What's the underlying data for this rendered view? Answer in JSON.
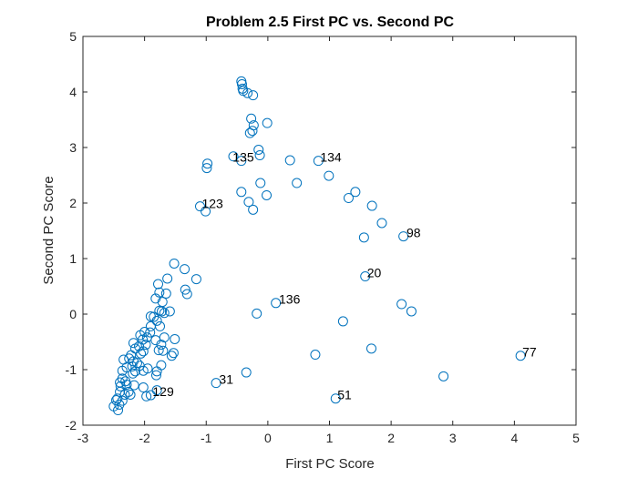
{
  "chart_data": {
    "type": "scatter",
    "title": "Problem 2.5 First PC vs. Second PC",
    "xlabel": "First PC Score",
    "ylabel": "Second PC Score",
    "xlim": [
      -3,
      5
    ],
    "ylim": [
      -2,
      5
    ],
    "xticks": [
      -3,
      -2,
      -1,
      0,
      1,
      2,
      3,
      4,
      5
    ],
    "yticks": [
      -2,
      -1,
      0,
      1,
      2,
      3,
      4,
      5
    ],
    "grid": false,
    "marker": "circle",
    "color": "#0072BD",
    "points": [
      [
        -0.43,
        4.19
      ],
      [
        -0.42,
        4.14
      ],
      [
        -0.41,
        4.06
      ],
      [
        -0.4,
        4.02
      ],
      [
        -0.33,
        3.98
      ],
      [
        -0.24,
        3.94
      ],
      [
        -0.27,
        3.52
      ],
      [
        -0.23,
        3.4
      ],
      [
        -0.01,
        3.44
      ],
      [
        -0.29,
        3.26
      ],
      [
        -0.25,
        3.3
      ],
      [
        -0.15,
        2.96
      ],
      [
        -0.56,
        2.84
      ],
      [
        -0.43,
        2.76
      ],
      [
        -0.13,
        2.86
      ],
      [
        -0.98,
        2.71
      ],
      [
        -0.99,
        2.63
      ],
      [
        0.36,
        2.77
      ],
      [
        0.82,
        2.76
      ],
      [
        0.99,
        2.49
      ],
      [
        0.47,
        2.36
      ],
      [
        -0.12,
        2.36
      ],
      [
        1.42,
        2.2
      ],
      [
        1.31,
        2.09
      ],
      [
        1.69,
        1.95
      ],
      [
        1.85,
        1.64
      ],
      [
        2.2,
        1.4
      ],
      [
        1.56,
        1.38
      ],
      [
        -0.43,
        2.2
      ],
      [
        -0.31,
        2.02
      ],
      [
        -0.24,
        1.88
      ],
      [
        -0.02,
        2.14
      ],
      [
        -1.1,
        1.94
      ],
      [
        -1.01,
        1.85
      ],
      [
        1.58,
        0.68
      ],
      [
        0.13,
        0.2
      ],
      [
        2.17,
        0.18
      ],
      [
        2.33,
        0.05
      ],
      [
        -0.18,
        0.01
      ],
      [
        1.22,
        -0.13
      ],
      [
        0.77,
        -0.73
      ],
      [
        1.68,
        -0.62
      ],
      [
        2.85,
        -1.12
      ],
      [
        4.1,
        -0.75
      ],
      [
        -0.84,
        -1.24
      ],
      [
        -0.35,
        -1.05
      ],
      [
        1.1,
        -1.52
      ],
      [
        -1.52,
        0.91
      ],
      [
        -1.35,
        0.81
      ],
      [
        -1.63,
        0.64
      ],
      [
        -1.16,
        0.63
      ],
      [
        -1.78,
        0.54
      ],
      [
        -1.34,
        0.44
      ],
      [
        -1.31,
        0.36
      ],
      [
        -1.65,
        0.37
      ],
      [
        -1.76,
        0.39
      ],
      [
        -1.82,
        0.28
      ],
      [
        -1.71,
        0.22
      ],
      [
        -1.72,
        0.05
      ],
      [
        -1.59,
        0.05
      ],
      [
        -1.76,
        0.06
      ],
      [
        -1.68,
        0.02
      ],
      [
        -1.85,
        -0.05
      ],
      [
        -1.9,
        -0.04
      ],
      [
        -1.8,
        -0.12
      ],
      [
        -1.9,
        -0.22
      ],
      [
        -1.75,
        -0.22
      ],
      [
        -1.91,
        -0.33
      ],
      [
        -1.68,
        -0.42
      ],
      [
        -1.51,
        -0.45
      ],
      [
        -2.0,
        -0.32
      ],
      [
        -2.07,
        -0.38
      ],
      [
        -1.96,
        -0.42
      ],
      [
        -1.82,
        -0.47
      ],
      [
        -1.73,
        -0.55
      ],
      [
        -2.03,
        -0.46
      ],
      [
        -2.18,
        -0.52
      ],
      [
        -1.98,
        -0.55
      ],
      [
        -2.09,
        -0.58
      ],
      [
        -2.15,
        -0.62
      ],
      [
        -1.7,
        -0.66
      ],
      [
        -1.77,
        -0.65
      ],
      [
        -1.53,
        -0.7
      ],
      [
        -1.56,
        -0.75
      ],
      [
        -2.02,
        -0.67
      ],
      [
        -2.06,
        -0.71
      ],
      [
        -2.22,
        -0.74
      ],
      [
        -2.34,
        -0.82
      ],
      [
        -2.25,
        -0.8
      ],
      [
        -2.18,
        -0.85
      ],
      [
        -2.12,
        -0.88
      ],
      [
        -2.08,
        -0.93
      ],
      [
        -2.2,
        -0.94
      ],
      [
        -1.73,
        -0.92
      ],
      [
        -1.95,
        -0.98
      ],
      [
        -2.02,
        -1.02
      ],
      [
        -2.15,
        -1.03
      ],
      [
        -2.29,
        -0.96
      ],
      [
        -2.36,
        -1.02
      ],
      [
        -1.8,
        -1.03
      ],
      [
        -1.81,
        -1.1
      ],
      [
        -2.19,
        -1.07
      ],
      [
        -2.36,
        -1.16
      ],
      [
        -2.31,
        -1.21
      ],
      [
        -2.4,
        -1.23
      ],
      [
        -2.39,
        -1.3
      ],
      [
        -2.29,
        -1.27
      ],
      [
        -2.17,
        -1.28
      ],
      [
        -2.02,
        -1.32
      ],
      [
        -1.8,
        -1.37
      ],
      [
        -2.26,
        -1.4
      ],
      [
        -2.4,
        -1.4
      ],
      [
        -2.32,
        -1.45
      ],
      [
        -2.23,
        -1.45
      ],
      [
        -1.9,
        -1.46
      ],
      [
        -1.97,
        -1.48
      ],
      [
        -2.44,
        -1.52
      ],
      [
        -2.36,
        -1.56
      ],
      [
        -2.46,
        -1.55
      ],
      [
        -2.41,
        -1.63
      ],
      [
        -2.5,
        -1.66
      ],
      [
        -2.43,
        -1.73
      ]
    ],
    "annotations": [
      {
        "text": "135",
        "x": -0.6,
        "y": 2.78
      },
      {
        "text": "134",
        "x": 0.82,
        "y": 2.78
      },
      {
        "text": "123",
        "x": -1.1,
        "y": 1.94
      },
      {
        "text": "98",
        "x": 2.22,
        "y": 1.42
      },
      {
        "text": "20",
        "x": 1.58,
        "y": 0.7
      },
      {
        "text": "136",
        "x": 0.15,
        "y": 0.22
      },
      {
        "text": "77",
        "x": 4.1,
        "y": -0.73
      },
      {
        "text": "31",
        "x": -0.82,
        "y": -1.22
      },
      {
        "text": "51",
        "x": 1.1,
        "y": -1.5
      },
      {
        "text": "129",
        "x": -1.9,
        "y": -1.44
      }
    ]
  }
}
